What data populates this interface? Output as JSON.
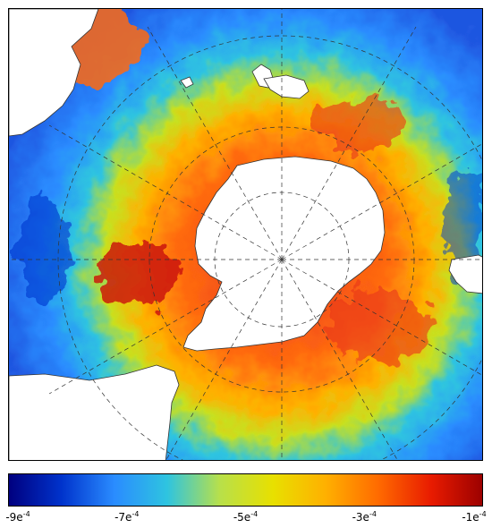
{
  "colorbar": {
    "min": -0.0009,
    "max": -0.0001,
    "colors": [
      "#00007f",
      "#0033cc",
      "#2a8cff",
      "#2ec4e0",
      "#b8e04a",
      "#e8e000",
      "#ffb000",
      "#ff6a00",
      "#e81b00",
      "#9a0000"
    ],
    "ticks": [
      {
        "value": -0.0009,
        "base": "-9e",
        "exp": "-4"
      },
      {
        "value": -0.0007,
        "base": "-7e",
        "exp": "-4"
      },
      {
        "value": -0.0005,
        "base": "-5e",
        "exp": "-4"
      },
      {
        "value": -0.0003,
        "base": "-3e",
        "exp": "-4"
      },
      {
        "value": -0.0001,
        "base": "-1e",
        "exp": "-4"
      }
    ]
  },
  "map": {
    "projection": "south-polar-stereographic",
    "colors": {
      "land": "#ffffff",
      "coast": "#333333",
      "grid": "#333333",
      "outer": "#2f7bff",
      "belt": "#ff6a10",
      "core": "#e8341a"
    }
  }
}
